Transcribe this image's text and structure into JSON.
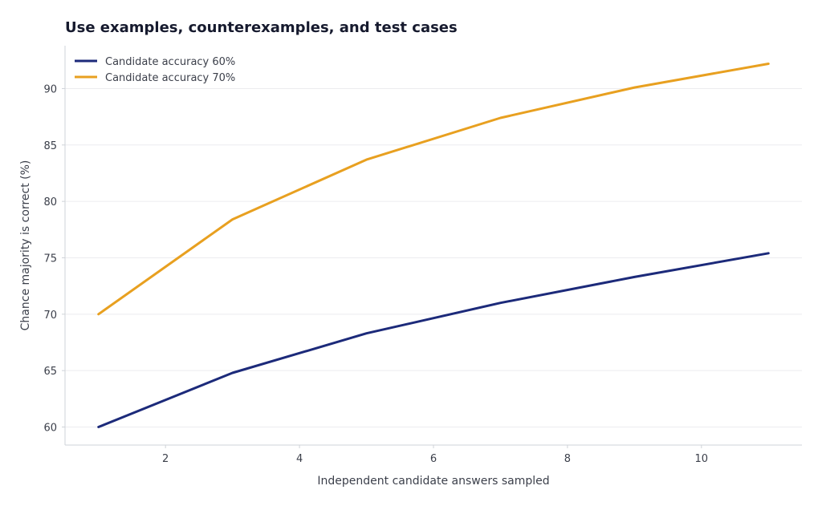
{
  "chart_data": {
    "type": "line",
    "title": "Use examples, counterexamples, and test cases",
    "xlabel": "Independent candidate answers sampled",
    "ylabel": "Chance majority is correct (%)",
    "xlim": [
      0.5,
      11.5
    ],
    "ylim": [
      58.4,
      93.8
    ],
    "xticks": [
      2,
      4,
      6,
      8,
      10
    ],
    "yticks": [
      60,
      65,
      70,
      75,
      80,
      85,
      90
    ],
    "grid": "horizontal",
    "legend_position": "top-left",
    "x": [
      1,
      3,
      5,
      7,
      9,
      11
    ],
    "series": [
      {
        "name": "Candidate accuracy 60%",
        "color": "#1c2a7a",
        "values": [
          60.0,
          64.8,
          68.3,
          71.0,
          73.3,
          75.4
        ]
      },
      {
        "name": "Candidate accuracy 70%",
        "color": "#e8a020",
        "values": [
          70.0,
          78.4,
          83.7,
          87.4,
          90.1,
          92.2
        ]
      }
    ]
  }
}
